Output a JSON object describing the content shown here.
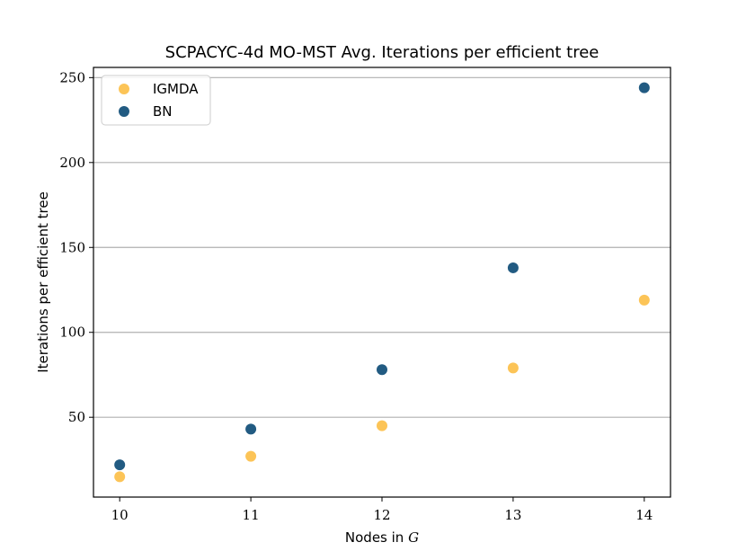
{
  "chart_data": {
    "type": "scatter",
    "title": "SCPACYC-4d MO-MST Avg. Iterations per efficient tree",
    "xlabel": "Nodes in",
    "xlabel_var": "G",
    "ylabel": "Iterations per efficient tree",
    "x": [
      10,
      11,
      12,
      13,
      14
    ],
    "xlim": [
      9.8,
      14.2
    ],
    "ylim": [
      3,
      256
    ],
    "xticks": [
      10,
      11,
      12,
      13,
      14
    ],
    "yticks": [
      50,
      100,
      150,
      200,
      250
    ],
    "grid": "y",
    "legend_position": "top-left",
    "series": [
      {
        "name": "IGMDA",
        "color": "#fcc457",
        "values": [
          15,
          27,
          45,
          79,
          119
        ]
      },
      {
        "name": "BN",
        "color": "#225b82",
        "values": [
          22,
          43,
          78,
          138,
          244
        ]
      }
    ]
  }
}
